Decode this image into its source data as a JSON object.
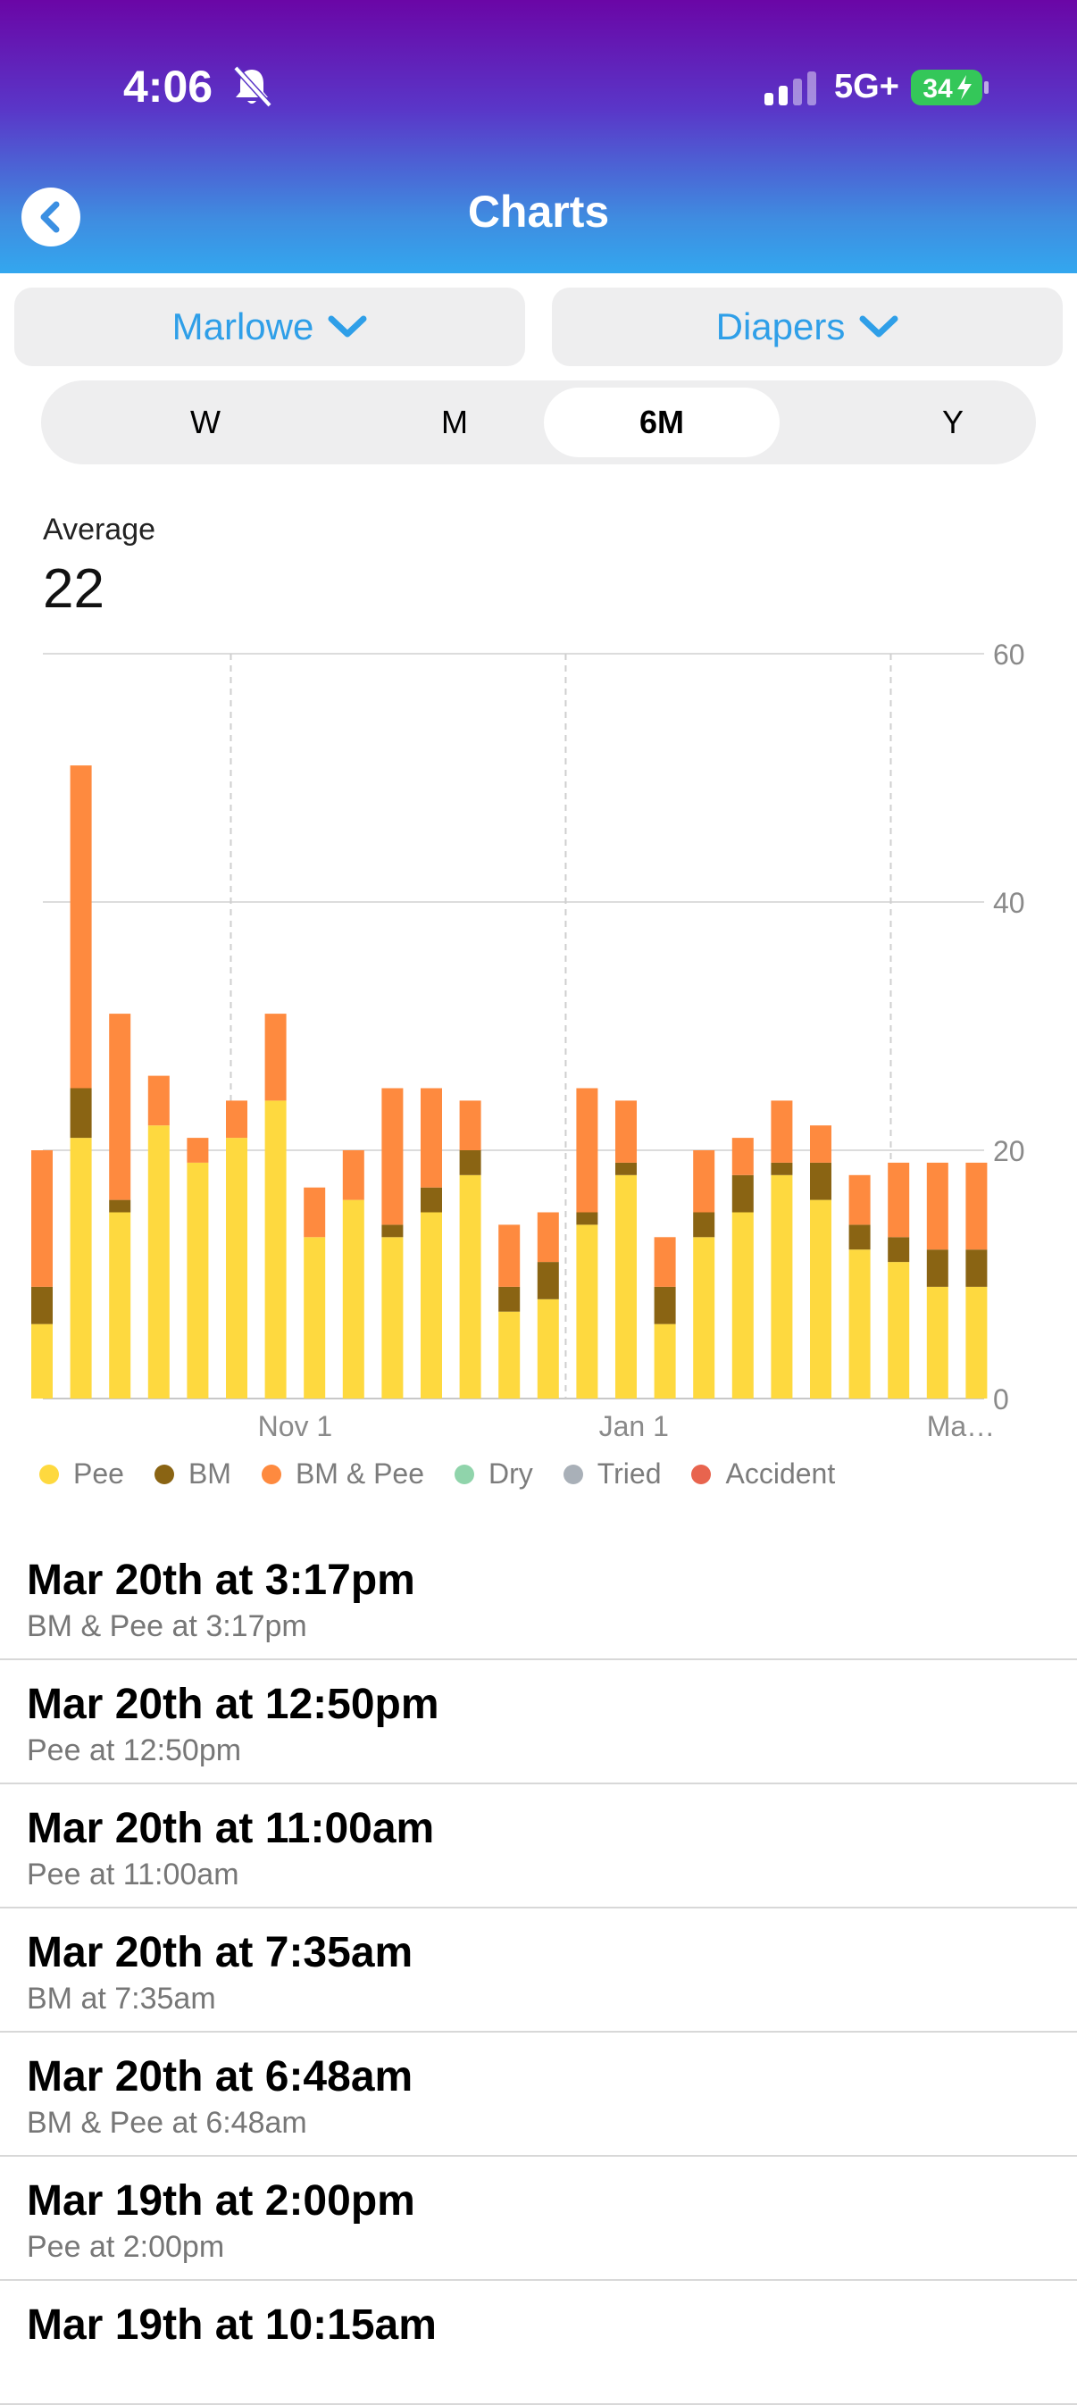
{
  "status_bar": {
    "time": "4:06",
    "network": "5G+",
    "battery": "34"
  },
  "header": {
    "title": "Charts"
  },
  "filters": {
    "child": "Marlowe",
    "category": "Diapers"
  },
  "range_tabs": [
    {
      "label": "W",
      "selected": false
    },
    {
      "label": "M",
      "selected": false
    },
    {
      "label": "6M",
      "selected": true
    },
    {
      "label": "Y",
      "selected": false
    }
  ],
  "summary": {
    "label": "Average",
    "value": "22"
  },
  "colors": {
    "pee": "#fed93f",
    "bm": "#8a6413",
    "bm_pee": "#fe8a3f",
    "dry": "#90d4ab",
    "tried": "#a9b0b8",
    "accident": "#e8644e"
  },
  "chart_data": {
    "type": "bar",
    "stacked": true,
    "series": [
      {
        "name": "Pee",
        "values": [
          6,
          21,
          15,
          22,
          19,
          21,
          24,
          13,
          16,
          13,
          15,
          18,
          7,
          8,
          14,
          18,
          6,
          13,
          15,
          18,
          16,
          12,
          11,
          9,
          9
        ]
      },
      {
        "name": "BM",
        "values": [
          3,
          4,
          1,
          0,
          0,
          0,
          0,
          0,
          0,
          1,
          2,
          2,
          2,
          3,
          1,
          1,
          3,
          2,
          3,
          1,
          3,
          2,
          2,
          3,
          3
        ]
      },
      {
        "name": "BM & Pee",
        "values": [
          11,
          26,
          15,
          4,
          2,
          3,
          7,
          4,
          4,
          11,
          8,
          4,
          5,
          4,
          10,
          5,
          4,
          5,
          3,
          5,
          3,
          4,
          6,
          7,
          7
        ]
      },
      {
        "name": "Dry",
        "values": [
          0,
          0,
          0,
          0,
          0,
          0,
          0,
          0,
          0,
          0,
          0,
          0,
          0,
          0,
          0,
          0,
          0,
          0,
          0,
          0,
          0,
          0,
          0,
          0,
          0
        ]
      },
      {
        "name": "Tried",
        "values": [
          0,
          0,
          0,
          0,
          0,
          0,
          0,
          0,
          0,
          0,
          0,
          0,
          0,
          0,
          0,
          0,
          0,
          0,
          0,
          0,
          0,
          0,
          0,
          0,
          0
        ]
      },
      {
        "name": "Accident",
        "values": [
          0,
          0,
          0,
          0,
          0,
          0,
          0,
          0,
          0,
          0,
          0,
          0,
          0,
          0,
          0,
          0,
          0,
          0,
          0,
          0,
          0,
          0,
          0,
          0,
          0
        ]
      }
    ],
    "ylim": [
      0,
      60
    ],
    "yticks": [
      0,
      20,
      40,
      60
    ],
    "xtick_labels": [
      {
        "label": "Nov 1",
        "index": 6.5
      },
      {
        "label": "Jan 1",
        "index": 15.2
      },
      {
        "label": "Ma…",
        "index": 23.6
      }
    ],
    "month_divider_indices": [
      4.85,
      13.45,
      21.8
    ],
    "legend": [
      "Pee",
      "BM",
      "BM & Pee",
      "Dry",
      "Tried",
      "Accident"
    ]
  },
  "entries": [
    {
      "title": "Mar 20th at 3:17pm",
      "subtitle": "BM & Pee at 3:17pm"
    },
    {
      "title": "Mar 20th at 12:50pm",
      "subtitle": "Pee at 12:50pm"
    },
    {
      "title": "Mar 20th at 11:00am",
      "subtitle": "Pee at 11:00am"
    },
    {
      "title": "Mar 20th at 7:35am",
      "subtitle": "BM at 7:35am"
    },
    {
      "title": "Mar 20th at 6:48am",
      "subtitle": "BM & Pee at 6:48am"
    },
    {
      "title": "Mar 19th at 2:00pm",
      "subtitle": "Pee at 2:00pm"
    },
    {
      "title": "Mar 19th at 10:15am",
      "subtitle": ""
    }
  ]
}
